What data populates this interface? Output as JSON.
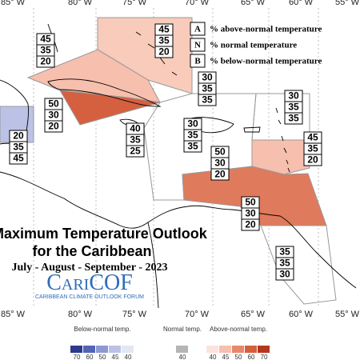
{
  "longitude_labels_top": [
    "85° W",
    "80° W",
    "75° W",
    "70° W",
    "65° W",
    "60° W",
    "55° W"
  ],
  "longitude_labels_bottom": [
    "85° W",
    "80° W",
    "75° W",
    "70° W",
    "65° W",
    "60° W",
    "55° W"
  ],
  "legend": [
    {
      "letter": "A",
      "text": "% above-normal temperature"
    },
    {
      "letter": "N",
      "text": "% normal temperature"
    },
    {
      "letter": "B",
      "text": "% below-normal temperature"
    }
  ],
  "title": "Maximum Temperature Outlook",
  "subtitle": "for the Caribbean",
  "period": "July - August - September - 2023",
  "logo": {
    "name": "CariCOF",
    "tagline": "CARIBBEAN CLIMATE OUTLOOK FORUM"
  },
  "regions": [
    {
      "above": 45,
      "normal": 35,
      "below": 20
    },
    {
      "above": 45,
      "normal": 35,
      "below": 20
    },
    {
      "above": 30,
      "normal": 35,
      "below": 35
    },
    {
      "above": 30,
      "normal": 35,
      "below": 35
    },
    {
      "above": 50,
      "normal": 30,
      "below": 20
    },
    {
      "above": 40,
      "normal": 35,
      "below": 25
    },
    {
      "above": 30,
      "normal": 35,
      "below": 35
    },
    {
      "above": 20,
      "normal": 35,
      "below": 45
    },
    {
      "above": 45,
      "normal": 35,
      "below": 20
    },
    {
      "above": 50,
      "normal": 30,
      "below": 20
    },
    {
      "above": 50,
      "normal": 30,
      "below": 20
    },
    {
      "above": 35,
      "normal": 35,
      "below": 30
    }
  ],
  "color_scale": {
    "below": {
      "label": "Below-normal temp.",
      "ticks": [
        70,
        60,
        50,
        45,
        40
      ],
      "colors": [
        "#2b3a8f",
        "#5363b5",
        "#8e98d3",
        "#bcc2e6",
        "#e3e6f5"
      ]
    },
    "normal": {
      "label": "Normal temp.",
      "ticks": [
        40
      ],
      "colors": [
        "#b5b5b5"
      ]
    },
    "above": {
      "label": "Above-normal temp.",
      "ticks": [
        40,
        45,
        50,
        60,
        70
      ],
      "colors": [
        "#fbe3dc",
        "#f6bfae",
        "#e9876b",
        "#d4603f",
        "#b4371f"
      ]
    }
  }
}
